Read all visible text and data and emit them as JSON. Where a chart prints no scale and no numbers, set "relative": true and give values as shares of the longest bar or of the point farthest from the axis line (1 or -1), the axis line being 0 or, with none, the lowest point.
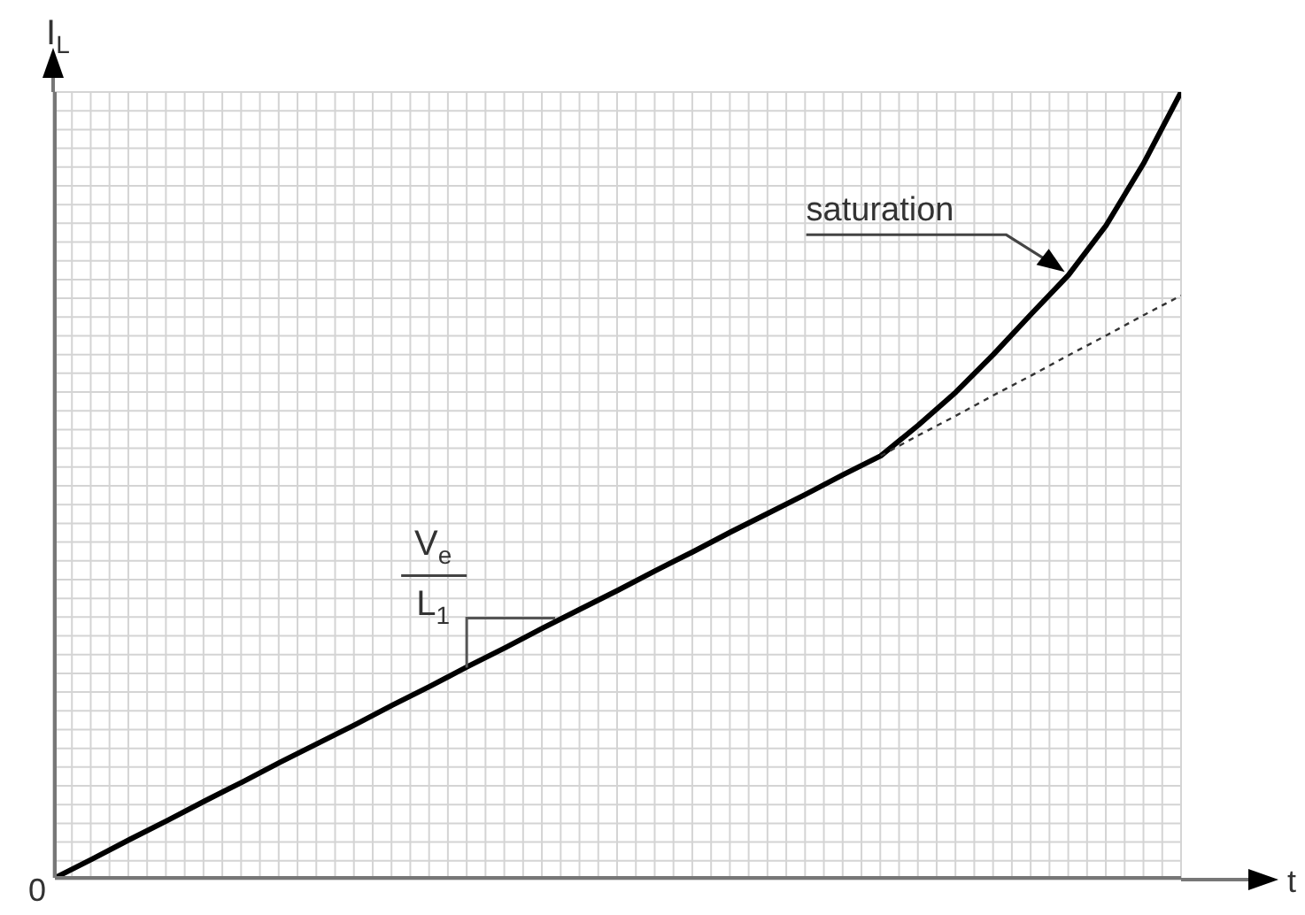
{
  "chart_data": {
    "type": "line",
    "relative": true,
    "xlabel": "t",
    "ylabel": "I$_{L}$",
    "grid": true,
    "marker": "none",
    "categories": [
      null,
      null,
      null,
      null,
      null,
      null,
      null,
      null,
      null,
      null,
      null,
      null,
      null,
      null,
      null,
      null,
      null,
      null,
      null,
      null,
      null,
      null,
      null,
      null,
      null,
      null,
      null,
      null,
      null,
      null,
      null
    ],
    "annotations": [
      "0",
      "saturation",
      "V$_{e}$",
      "L$_{1}$"
    ],
    "series": [
      {
        "color": "#000000",
        "line_style": "solid",
        "values": [
          0,
          0.024,
          0.049,
          0.073,
          0.098,
          0.122,
          0.147,
          0.171,
          0.195,
          0.22,
          0.244,
          0.269,
          0.293,
          0.318,
          0.342,
          0.366,
          0.391,
          0.415,
          0.44,
          0.464,
          0.488,
          0.513,
          0.537,
          0.576,
          0.618,
          0.666,
          0.717,
          0.767,
          0.83,
          0.909,
          1
        ]
      },
      {
        "color": "#333333",
        "line_style": "dotted",
        "values": [
          null,
          null,
          null,
          null,
          null,
          null,
          null,
          null,
          null,
          null,
          null,
          null,
          null,
          null,
          null,
          null,
          null,
          null,
          null,
          null,
          null,
          null,
          0.537,
          0.563,
          0.588,
          0.614,
          0.639,
          0.665,
          0.69,
          0.716,
          0.741
        ]
      }
    ]
  }
}
